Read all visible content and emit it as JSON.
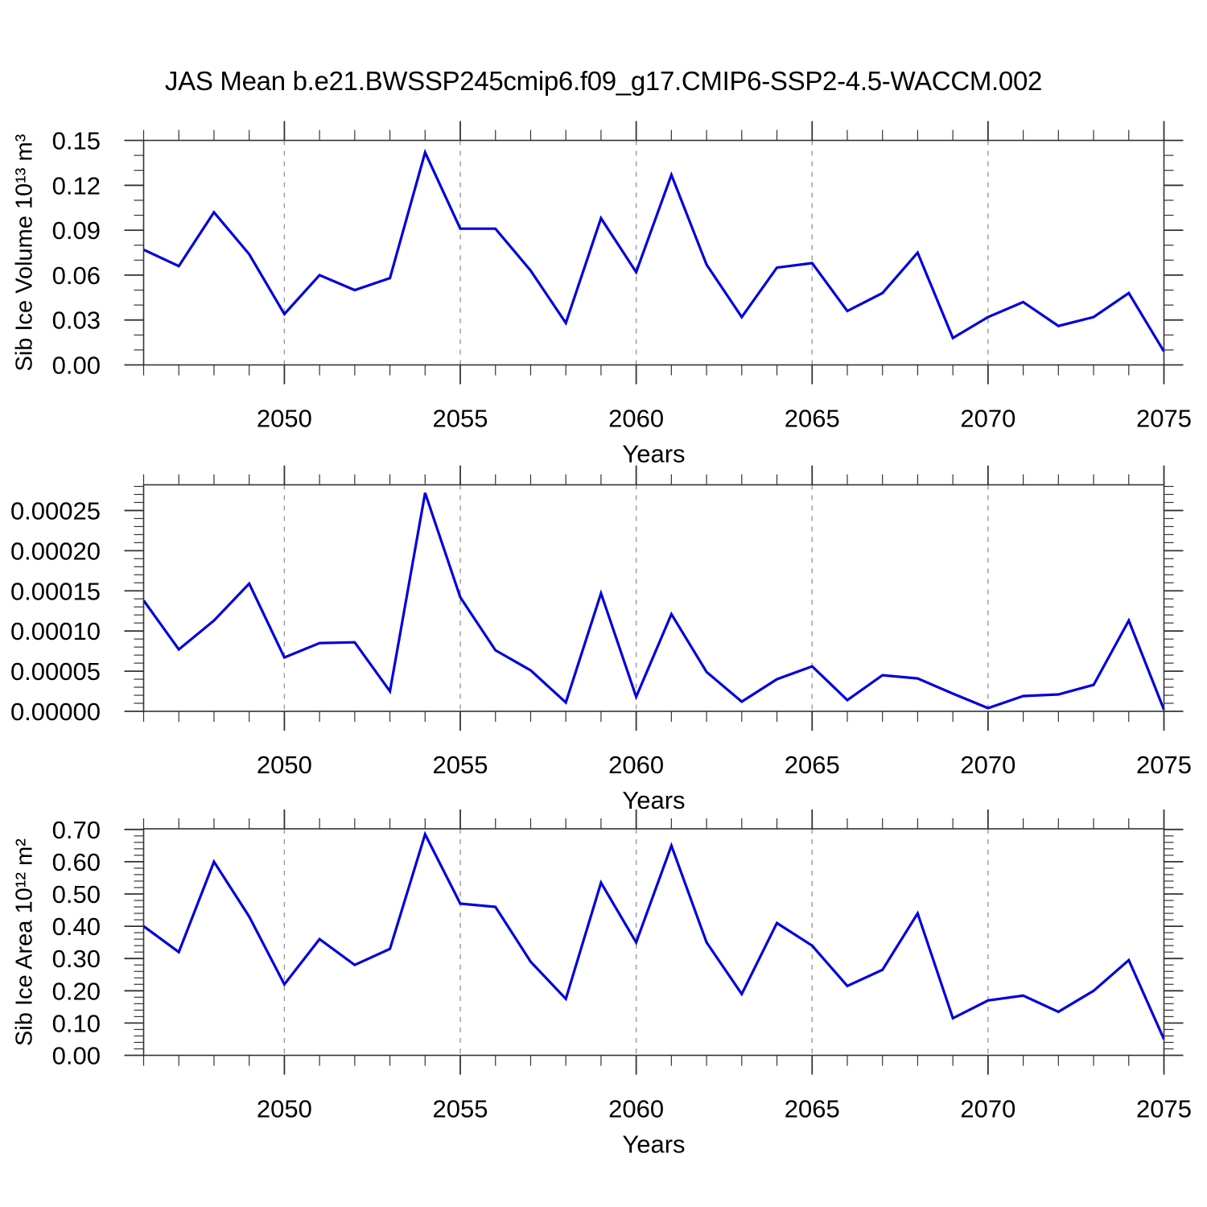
{
  "page": {
    "title": "JAS Mean b.e21.BWSSP245cmip6.f09_g17.CMIP6-SSP2-4.5-WACCM.002",
    "background": "#ffffff"
  },
  "styles": {
    "line_color": "#0000dd",
    "grid_color": "#999999",
    "axis_color": "#333333",
    "text_color": "#000000"
  },
  "chart_data": [
    {
      "id": "sib-ice-volume",
      "type": "line",
      "ylabel": "Sib Ice Volume 10¹³ m³",
      "xlabel": "Years",
      "legend": "none",
      "grid": "vertical-dashed",
      "xlim": [
        2046,
        2075
      ],
      "ylim": [
        0,
        0.15
      ],
      "x": [
        2046,
        2047,
        2048,
        2049,
        2050,
        2051,
        2052,
        2053,
        2054,
        2055,
        2056,
        2057,
        2058,
        2059,
        2060,
        2061,
        2062,
        2063,
        2064,
        2065,
        2066,
        2067,
        2068,
        2069,
        2070,
        2071,
        2072,
        2073,
        2074,
        2075
      ],
      "series": [
        {
          "name": "Sib Ice Volume",
          "values": [
            0.077,
            0.066,
            0.102,
            0.074,
            0.034,
            0.06,
            0.05,
            0.058,
            0.142,
            0.091,
            0.091,
            0.063,
            0.028,
            0.098,
            0.062,
            0.127,
            0.067,
            0.032,
            0.065,
            0.068,
            0.036,
            0.048,
            0.075,
            0.018,
            0.032,
            0.042,
            0.026,
            0.032,
            0.048,
            0.009
          ]
        }
      ],
      "x_major_ticks": [
        2050,
        2055,
        2060,
        2065,
        2070,
        2075
      ],
      "x_tick_labels": [
        "2050",
        "2055",
        "2060",
        "2065",
        "2070",
        "2075"
      ],
      "x_gridlines": [
        2050,
        2055,
        2060,
        2065,
        2070
      ],
      "x_minor_step": 1,
      "y_major_ticks": [
        0,
        0.03,
        0.06,
        0.09,
        0.12,
        0.15
      ],
      "y_tick_labels": [
        "0.00",
        "0.03",
        "0.06",
        "0.09",
        "0.12",
        "0.15"
      ],
      "y_minor_step": 0.01
    },
    {
      "id": "middle",
      "type": "line",
      "ylabel": "",
      "xlabel": "Years",
      "legend": "none",
      "grid": "vertical-dashed",
      "xlim": [
        2046,
        2075
      ],
      "ylim": [
        0,
        0.000282
      ],
      "x": [
        2046,
        2047,
        2048,
        2049,
        2050,
        2051,
        2052,
        2053,
        2054,
        2055,
        2056,
        2057,
        2058,
        2059,
        2060,
        2061,
        2062,
        2063,
        2064,
        2065,
        2066,
        2067,
        2068,
        2069,
        2070,
        2071,
        2072,
        2073,
        2074,
        2075
      ],
      "series": [
        {
          "name": "",
          "values": [
            0.000138,
            7.7e-05,
            0.000113,
            0.000159,
            6.7e-05,
            8.5e-05,
            8.6e-05,
            2.5e-05,
            0.000272,
            0.000142,
            7.6e-05,
            5.1e-05,
            1.1e-05,
            0.000147,
            1.8e-05,
            0.000121,
            4.9e-05,
            1.2e-05,
            4e-05,
            5.6e-05,
            1.4e-05,
            4.5e-05,
            4.1e-05,
            2.2e-05,
            4e-06,
            1.9e-05,
            2.1e-05,
            3.3e-05,
            0.000113,
            2e-06
          ]
        }
      ],
      "x_major_ticks": [
        2050,
        2055,
        2060,
        2065,
        2070,
        2075
      ],
      "x_tick_labels": [
        "2050",
        "2055",
        "2060",
        "2065",
        "2070",
        "2075"
      ],
      "x_gridlines": [
        2050,
        2055,
        2060,
        2065,
        2070
      ],
      "x_minor_step": 1,
      "y_major_ticks": [
        0,
        5e-05,
        0.0001,
        0.00015,
        0.0002,
        0.00025
      ],
      "y_tick_labels": [
        "0.00000",
        "0.00005",
        "0.00010",
        "0.00015",
        "0.00020",
        "0.00025"
      ],
      "y_minor_step": 1e-05
    },
    {
      "id": "sib-ice-area",
      "type": "line",
      "ylabel": "Sib Ice Area 10¹² m²",
      "xlabel": "Years",
      "legend": "none",
      "grid": "vertical-dashed",
      "xlim": [
        2046,
        2075
      ],
      "ylim": [
        0,
        0.702
      ],
      "x": [
        2046,
        2047,
        2048,
        2049,
        2050,
        2051,
        2052,
        2053,
        2054,
        2055,
        2056,
        2057,
        2058,
        2059,
        2060,
        2061,
        2062,
        2063,
        2064,
        2065,
        2066,
        2067,
        2068,
        2069,
        2070,
        2071,
        2072,
        2073,
        2074,
        2075
      ],
      "series": [
        {
          "name": "Sib Ice Area",
          "values": [
            0.4,
            0.32,
            0.6,
            0.43,
            0.22,
            0.36,
            0.28,
            0.33,
            0.685,
            0.47,
            0.46,
            0.29,
            0.175,
            0.535,
            0.35,
            0.65,
            0.35,
            0.19,
            0.41,
            0.34,
            0.215,
            0.265,
            0.44,
            0.115,
            0.17,
            0.185,
            0.135,
            0.2,
            0.295,
            0.05
          ]
        }
      ],
      "x_major_ticks": [
        2050,
        2055,
        2060,
        2065,
        2070,
        2075
      ],
      "x_tick_labels": [
        "2050",
        "2055",
        "2060",
        "2065",
        "2070",
        "2075"
      ],
      "x_gridlines": [
        2050,
        2055,
        2060,
        2065,
        2070
      ],
      "x_minor_step": 1,
      "y_major_ticks": [
        0,
        0.1,
        0.2,
        0.3,
        0.4,
        0.5,
        0.6,
        0.7
      ],
      "y_tick_labels": [
        "0.00",
        "0.10",
        "0.20",
        "0.30",
        "0.40",
        "0.50",
        "0.60",
        "0.70"
      ],
      "y_minor_step": 0.02
    }
  ]
}
